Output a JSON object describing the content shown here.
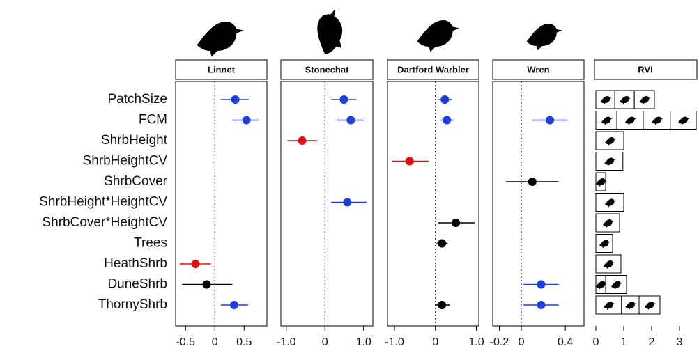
{
  "chart_data": {
    "type": "forest",
    "categories": [
      "PatchSize",
      "FCM",
      "ShrbHeight",
      "ShrbHeightCV",
      "ShrbCover",
      "ShrbHeight*HeightCV",
      "ShrbCover*HeightCV",
      "Trees",
      "HeathShrb",
      "DuneShrb",
      "ThornyShrb"
    ],
    "panels": [
      {
        "title": "Linnet",
        "xlim": [
          -0.67,
          0.89
        ],
        "xticks": [
          -0.5,
          0,
          0.5
        ],
        "values": [
          0.35,
          0.54,
          null,
          null,
          null,
          null,
          null,
          null,
          -0.33,
          -0.14,
          0.33
        ],
        "lower": [
          0.1,
          0.31,
          null,
          null,
          null,
          null,
          null,
          null,
          -0.6,
          -0.56,
          0.1
        ],
        "upper": [
          0.58,
          0.76,
          null,
          null,
          null,
          null,
          null,
          null,
          -0.07,
          0.3,
          0.57
        ],
        "colors": [
          "#1f3fd6",
          "#1f3fd6",
          null,
          null,
          null,
          null,
          null,
          null,
          "#e01010",
          "#000000",
          "#1f3fd6"
        ]
      },
      {
        "title": "Stonechat",
        "xlim": [
          -1.14,
          1.24
        ],
        "xticks": [
          {
            "value": -1,
            "label": "-1.0"
          },
          0,
          {
            "value": 1,
            "label": "1.0"
          }
        ],
        "values": [
          0.49,
          0.67,
          -0.59,
          null,
          null,
          0.58,
          null,
          null,
          null,
          null,
          null
        ],
        "lower": [
          0.16,
          0.32,
          -0.97,
          null,
          null,
          0.16,
          null,
          null,
          null,
          null,
          null
        ],
        "upper": [
          0.81,
          1.01,
          -0.2,
          null,
          null,
          1.08,
          null,
          null,
          null,
          null,
          null
        ],
        "colors": [
          "#1f3fd6",
          "#1f3fd6",
          "#e01010",
          null,
          null,
          "#1f3fd6",
          null,
          null,
          null,
          null,
          null
        ]
      },
      {
        "title": "Dartford Warbler",
        "xlim": [
          -1.17,
          1.06
        ],
        "xticks": [
          {
            "value": -1,
            "label": "-1.0"
          },
          0,
          {
            "value": 1,
            "label": "1.0"
          }
        ],
        "values": [
          0.23,
          0.28,
          null,
          -0.63,
          null,
          null,
          0.5,
          0.16,
          null,
          null,
          0.16
        ],
        "lower": [
          0.07,
          0.12,
          null,
          -1.06,
          null,
          null,
          0.07,
          0.03,
          null,
          null,
          0.0
        ],
        "upper": [
          0.4,
          0.45,
          null,
          -0.16,
          null,
          null,
          0.96,
          0.3,
          null,
          null,
          0.35
        ],
        "colors": [
          "#1f3fd6",
          "#1f3fd6",
          null,
          "#e01010",
          null,
          null,
          "#000000",
          "#000000",
          null,
          null,
          "#000000"
        ]
      },
      {
        "title": "Wren",
        "xlim": [
          -0.26,
          0.57
        ],
        "xticks": [
          -0.2,
          0,
          0.4
        ],
        "values": [
          null,
          0.26,
          null,
          null,
          0.1,
          null,
          null,
          null,
          null,
          0.18,
          0.18
        ],
        "lower": [
          null,
          0.1,
          null,
          null,
          -0.14,
          null,
          null,
          null,
          null,
          0.02,
          0.02
        ],
        "upper": [
          null,
          0.42,
          null,
          null,
          0.34,
          null,
          null,
          null,
          null,
          0.34,
          0.34
        ],
        "colors": [
          null,
          "#1f3fd6",
          null,
          null,
          "#000000",
          null,
          null,
          null,
          null,
          "#1f3fd6",
          "#1f3fd6"
        ]
      }
    ],
    "rvi": {
      "title": "RVI",
      "type": "stacked-bar",
      "xlim": [
        0,
        3.7
      ],
      "xticks": [
        0,
        1,
        2,
        3
      ],
      "series": [
        {
          "values": [
            0.68,
            0.75,
            null,
            null,
            null,
            null,
            null,
            null,
            0.9,
            0.35,
            0.92
          ]
        },
        {
          "values": [
            0.7,
            0.95,
            1.0,
            null,
            null,
            1.0,
            null,
            null,
            null,
            null,
            null
          ]
        },
        {
          "values": [
            0.72,
            0.97,
            null,
            0.97,
            null,
            null,
            0.85,
            0.6,
            null,
            null,
            0.63
          ]
        },
        {
          "values": [
            null,
            0.93,
            null,
            null,
            0.35,
            null,
            null,
            null,
            null,
            0.75,
            0.75
          ]
        }
      ]
    }
  }
}
